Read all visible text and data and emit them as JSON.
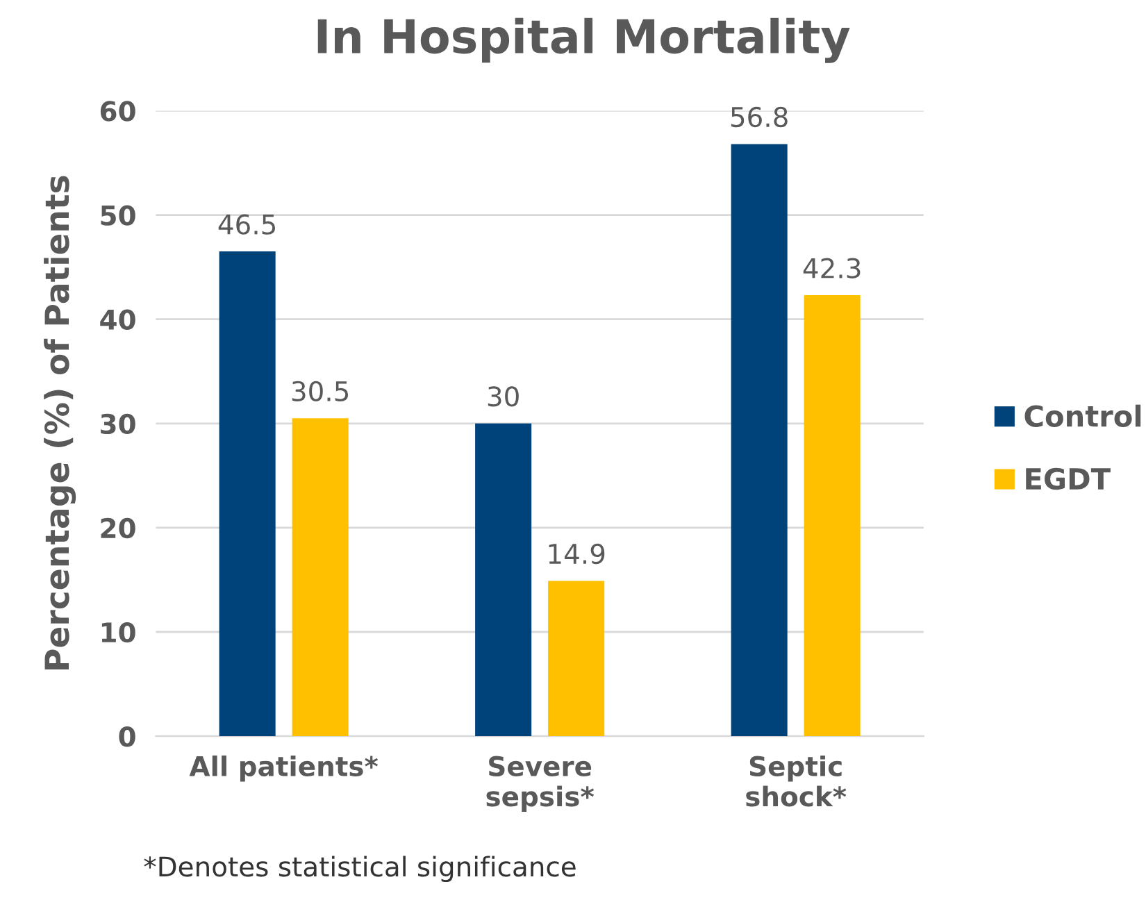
{
  "chart_data": {
    "type": "bar",
    "title": "In Hospital Mortality",
    "ylabel": "Percentage (%) of Patients",
    "categories": [
      "All patients*",
      "Severe\nsepsis*",
      "Septic\nshock*"
    ],
    "series": [
      {
        "name": "Control",
        "color": "#00427a",
        "values": [
          46.5,
          30,
          56.8
        ]
      },
      {
        "name": "EGDT",
        "color": "#ffc000",
        "values": [
          30.5,
          14.9,
          42.3
        ]
      }
    ],
    "ylim": [
      0,
      60
    ],
    "yticks": [
      0,
      10,
      20,
      30,
      40,
      50,
      60
    ],
    "grid": "y",
    "legend": "right",
    "data_labels": true,
    "annotations": [
      "*Denotes statistical significance"
    ]
  }
}
